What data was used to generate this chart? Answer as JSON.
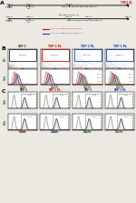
{
  "bg_color": "#ece8e2",
  "m1_color": "#cc1100",
  "m2_color": "#1144aa",
  "m2_green_color": "#228800",
  "thp1_color": "#333333",
  "gray_color": "#999999",
  "orange_color": "#cc7700",
  "olive_color": "#888800",
  "b_scatter_titles": [
    "THP-1",
    "THP-1 M₁",
    "THP-1 M₂",
    "THP-1 M₂"
  ],
  "b_scatter_title_colors": [
    "#333333",
    "#cc1100",
    "#1144aa",
    "#1144aa"
  ],
  "b_box_colors": [
    "#333333",
    "#cc1100",
    "#1144aa",
    "#1144aa"
  ],
  "b_pcts": [
    "45.58%\n ",
    "41.70%\n ",
    "40.74%\n ",
    "87.80%\n "
  ],
  "b_hist_xlabels": [
    "CD69",
    "CD209",
    "CD274",
    "CD279"
  ],
  "c_top_titles": [
    "THP-1",
    "THP-1 M₁",
    "THP-1",
    "THP-1 M₁"
  ],
  "c_top_colors": [
    "#333333",
    "#cc1100",
    "#333333",
    "#1144aa"
  ],
  "c_bot_labels": [
    "THP-1 M₁+α-PD-1",
    "THP-1 M₂+α-PD-1",
    "THP-1 M₁+α-PD-1",
    "THP-1 M₂+α-PD-1"
  ],
  "c_bot_colors": [
    "#cc1100",
    "#1144aa",
    "#228800",
    "#cc7700"
  ],
  "c_xlabels": [
    "CD69",
    "CD69",
    "CD279",
    "CD279"
  ],
  "legend_m1": "THP-1 M₁: Treatment of LPS and IFN-γ",
  "legend_m2": "THP-1 M₂: Treatment of IL-4 and IL-13"
}
